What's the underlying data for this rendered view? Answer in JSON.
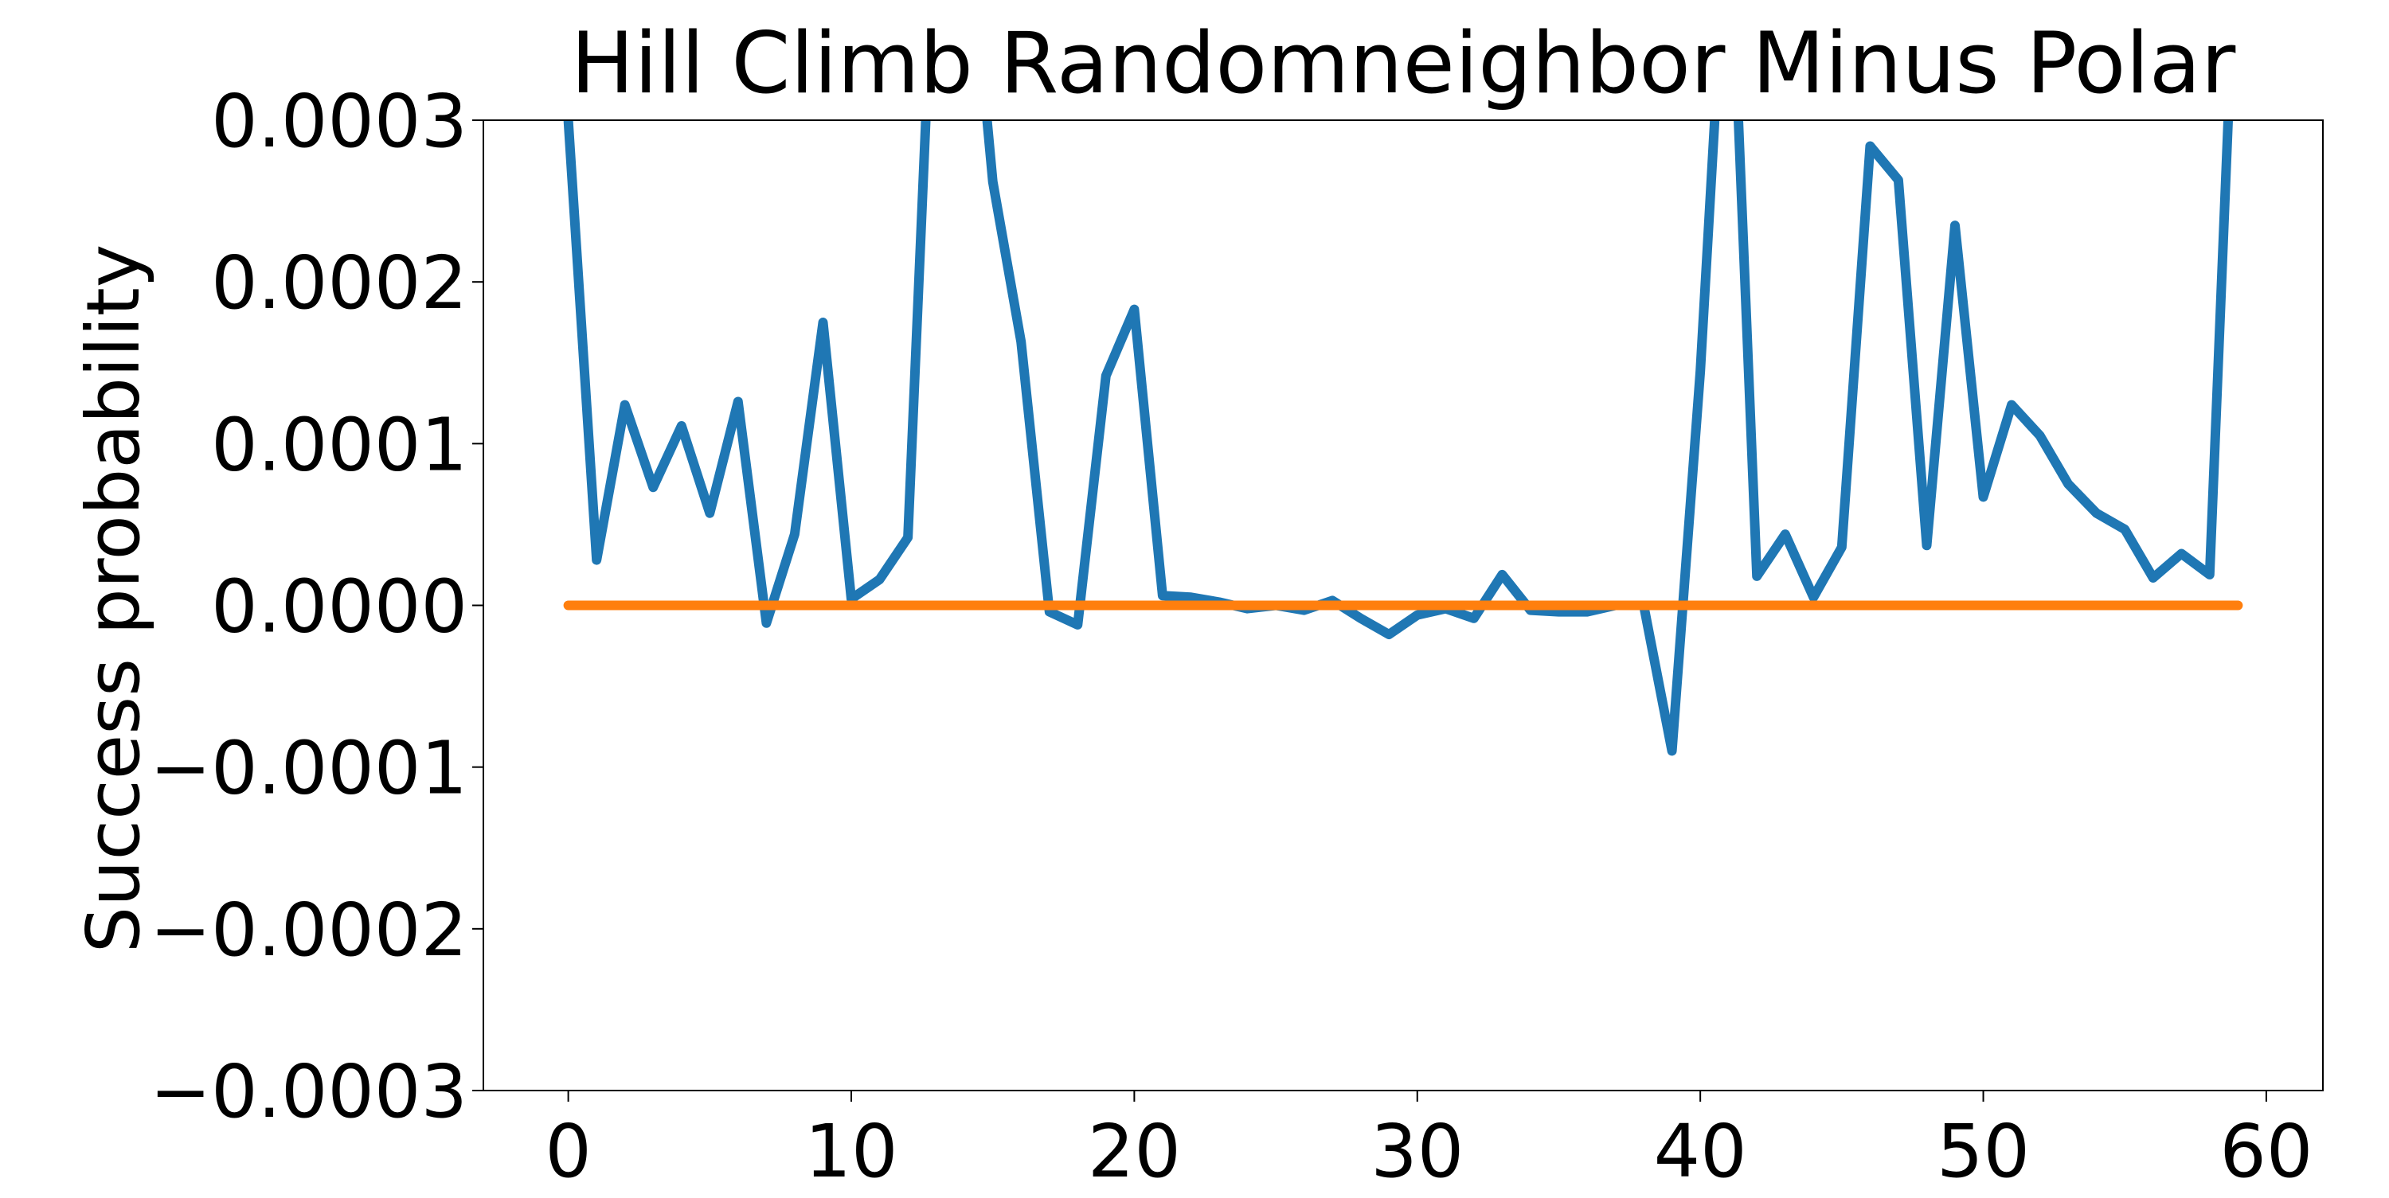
{
  "chart_data": {
    "type": "line",
    "title": "Hill Climb Randomneighbor Minus Polar",
    "xlabel": "",
    "ylabel": "Success probability",
    "xlim": [
      -3,
      62
    ],
    "ylim": [
      -0.0003,
      0.0003
    ],
    "x_ticks": [
      0,
      10,
      20,
      30,
      40,
      50,
      60
    ],
    "x_tick_labels": [
      "0",
      "10",
      "20",
      "30",
      "40",
      "50",
      "60"
    ],
    "y_ticks": [
      0.0003,
      0.0002,
      0.0001,
      0,
      -0.0001,
      -0.0002,
      -0.0003
    ],
    "y_tick_labels": [
      "0.0003",
      "0.0002",
      "0.0001",
      "0.0000",
      "−0.0001",
      "−0.0002",
      "−0.0003"
    ],
    "grid": false,
    "series": [
      {
        "color": "#1f77b4",
        "x": [
          0,
          1,
          2,
          3,
          4,
          5,
          6,
          7,
          8,
          9,
          10,
          11,
          12,
          13,
          14,
          15,
          16,
          17,
          18,
          19,
          20,
          21,
          22,
          23,
          24,
          25,
          26,
          27,
          28,
          29,
          30,
          31,
          32,
          33,
          34,
          35,
          36,
          37,
          38,
          39,
          40,
          41,
          42,
          43,
          44,
          45,
          46,
          47,
          48,
          49,
          50,
          51,
          52,
          53,
          54,
          55,
          56,
          57,
          58,
          59
        ],
        "values": [
          0.0003,
          2.8e-05,
          0.000124,
          7.3e-05,
          0.000111,
          5.7e-05,
          0.000126,
          -1.1e-05,
          4.4e-05,
          0.000175,
          4e-06,
          1.6e-05,
          4.2e-05,
          0.00045,
          0.00045,
          0.000262,
          0.000163,
          -4e-06,
          -1.2e-05,
          0.000142,
          0.000183,
          6e-06,
          5e-06,
          2e-06,
          -2e-06,
          0.0,
          -3e-06,
          3e-06,
          -8e-06,
          -1.8e-05,
          -6e-06,
          -2e-06,
          -8e-06,
          1.9e-05,
          -3e-06,
          -4e-06,
          -4e-06,
          0.0,
          0.0,
          -9e-05,
          0.000145,
          0.00045,
          1.8e-05,
          4.4e-05,
          5e-06,
          3.6e-05,
          0.000284,
          0.000263,
          3.7e-05,
          0.000235,
          6.7e-05,
          0.000124,
          0.000105,
          7.5e-05,
          5.7e-05,
          4.7e-05,
          1.7e-05,
          3.2e-05,
          1.9e-05,
          0.00045
        ]
      },
      {
        "color": "#ff7f0e",
        "x": [
          0,
          59
        ],
        "values": [
          0.0,
          0.0
        ]
      }
    ]
  }
}
